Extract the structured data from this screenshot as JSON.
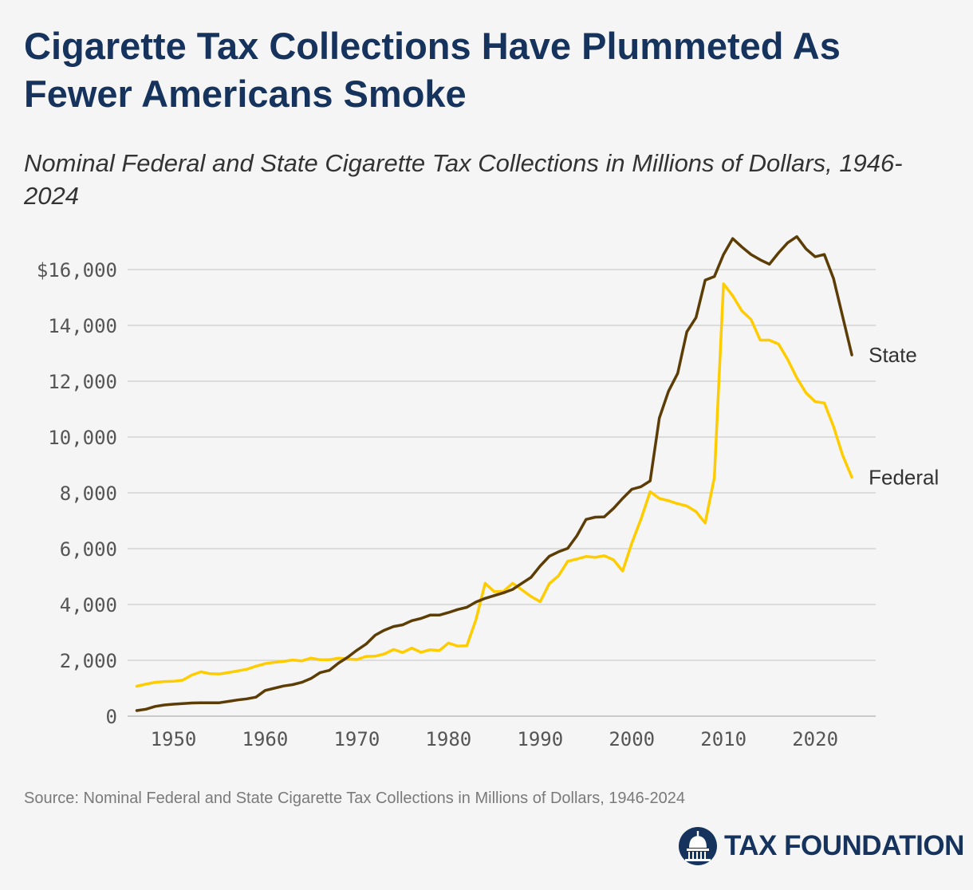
{
  "title": "Cigarette Tax Collections Have Plummeted As Fewer Americans Smoke",
  "subtitle": "Nominal Federal and State Cigarette Tax Collections in Millions of Dollars, 1946-2024",
  "source": "Source: Nominal Federal and State Cigarette Tax Collections in Millions of Dollars, 1946-2024",
  "logo_text": "TAX FOUNDATION",
  "logo_icon": "capitol-dome-icon",
  "colors": {
    "state": "#5c3d06",
    "federal": "#ffcc00",
    "grid": "#d4d4d4",
    "brand": "#15335c"
  },
  "chart_data": {
    "type": "line",
    "title": "Cigarette Tax Collections Have Plummeted As Fewer Americans Smoke",
    "xlabel": "",
    "ylabel": "",
    "xlim": [
      1946,
      2024
    ],
    "ylim": [
      0,
      16000
    ],
    "y_ticks": [
      0,
      2000,
      4000,
      6000,
      8000,
      10000,
      12000,
      14000,
      16000
    ],
    "y_tick_labels": [
      "0",
      "2,000",
      "4,000",
      "6,000",
      "8,000",
      "10,000",
      "12,000",
      "14,000",
      "$16,000"
    ],
    "x_ticks": [
      1950,
      1960,
      1970,
      1980,
      1990,
      2000,
      2010,
      2020
    ],
    "x_tick_labels": [
      "1950",
      "1960",
      "1970",
      "1980",
      "1990",
      "2000",
      "2010",
      "2020"
    ],
    "grid": true,
    "series": [
      {
        "name": "State",
        "x": [
          1946,
          1947,
          1948,
          1949,
          1950,
          1951,
          1952,
          1953,
          1954,
          1955,
          1956,
          1957,
          1958,
          1959,
          1960,
          1961,
          1962,
          1963,
          1964,
          1965,
          1966,
          1967,
          1968,
          1969,
          1970,
          1971,
          1972,
          1973,
          1974,
          1975,
          1976,
          1977,
          1978,
          1979,
          1980,
          1981,
          1982,
          1983,
          1984,
          1985,
          1986,
          1987,
          1988,
          1989,
          1990,
          1991,
          1992,
          1993,
          1994,
          1995,
          1996,
          1997,
          1998,
          1999,
          2000,
          2001,
          2002,
          2003,
          2004,
          2005,
          2006,
          2007,
          2008,
          2009,
          2010,
          2011,
          2012,
          2013,
          2014,
          2015,
          2016,
          2017,
          2018,
          2019,
          2020,
          2021,
          2022,
          2023,
          2024
        ],
        "values": [
          200,
          250,
          350,
          400,
          430,
          450,
          470,
          480,
          480,
          480,
          530,
          580,
          620,
          680,
          920,
          1000,
          1080,
          1130,
          1210,
          1350,
          1560,
          1640,
          1900,
          2110,
          2360,
          2580,
          2900,
          3080,
          3210,
          3270,
          3420,
          3500,
          3620,
          3620,
          3710,
          3820,
          3900,
          4090,
          4220,
          4320,
          4420,
          4540,
          4760,
          4970,
          5380,
          5730,
          5890,
          6010,
          6460,
          7050,
          7130,
          7140,
          7440,
          7800,
          8130,
          8220,
          8430,
          10680,
          11640,
          12280,
          13770,
          14280,
          15620,
          15750,
          16540,
          17110,
          16810,
          16540,
          16350,
          16190,
          16600,
          16960,
          17180,
          16740,
          16460,
          16540,
          15680,
          14310,
          12940
        ]
      },
      {
        "name": "Federal",
        "x": [
          1946,
          1947,
          1948,
          1949,
          1950,
          1951,
          1952,
          1953,
          1954,
          1955,
          1956,
          1957,
          1958,
          1959,
          1960,
          1961,
          1962,
          1963,
          1964,
          1965,
          1966,
          1967,
          1968,
          1969,
          1970,
          1971,
          1972,
          1973,
          1974,
          1975,
          1976,
          1977,
          1978,
          1979,
          1980,
          1981,
          1982,
          1983,
          1984,
          1985,
          1986,
          1987,
          1988,
          1989,
          1990,
          1991,
          1992,
          1993,
          1994,
          1995,
          1996,
          1997,
          1998,
          1999,
          2000,
          2001,
          2002,
          2003,
          2004,
          2005,
          2006,
          2007,
          2008,
          2009,
          2010,
          2011,
          2012,
          2013,
          2014,
          2015,
          2016,
          2017,
          2018,
          2019,
          2020,
          2021,
          2022,
          2023,
          2024
        ],
        "values": [
          1070,
          1150,
          1210,
          1240,
          1250,
          1290,
          1470,
          1590,
          1520,
          1510,
          1560,
          1620,
          1680,
          1790,
          1880,
          1930,
          1960,
          2010,
          1980,
          2080,
          2020,
          2020,
          2080,
          2050,
          2030,
          2140,
          2150,
          2230,
          2390,
          2280,
          2440,
          2290,
          2380,
          2350,
          2620,
          2510,
          2520,
          3460,
          4760,
          4460,
          4470,
          4760,
          4530,
          4290,
          4100,
          4750,
          5030,
          5550,
          5630,
          5720,
          5690,
          5750,
          5600,
          5200,
          6200,
          7060,
          8040,
          7800,
          7720,
          7610,
          7530,
          7330,
          6920,
          8550,
          15490,
          15060,
          14520,
          14210,
          13470,
          13470,
          13330,
          12780,
          12120,
          11580,
          11270,
          11220,
          10380,
          9340,
          8560
        ]
      }
    ]
  }
}
